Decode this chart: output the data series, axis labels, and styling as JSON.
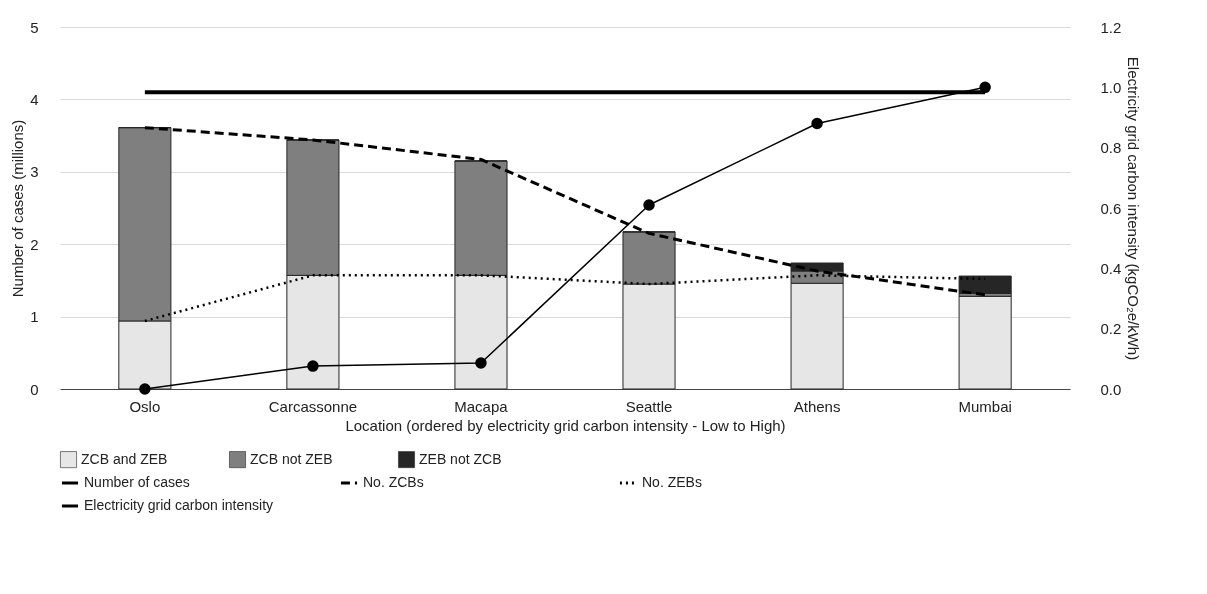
{
  "chart_data": {
    "type": "bar",
    "stacked": true,
    "xlabel": "Location (ordered by electricity grid carbon intensity - Low to High)",
    "ylabel": "Number of cases (millions)",
    "y2label": "Electricity grid carbon intensity (kgCO₂e/kWh)",
    "categories": [
      "Oslo",
      "Carcassonne",
      "Macapa",
      "Seattle",
      "Athens",
      "Mumbai"
    ],
    "series": [
      {
        "name": "ZCB and ZEB",
        "type": "bar",
        "color": "#e6e6e6",
        "values": [
          0.94,
          1.57,
          1.57,
          1.45,
          1.46,
          1.28
        ]
      },
      {
        "name": "ZCB not ZEB",
        "type": "bar",
        "color": "#7f7f7f",
        "values": [
          2.67,
          1.87,
          1.58,
          0.72,
          0.17,
          0.04
        ]
      },
      {
        "name": "ZEB not ZCB",
        "type": "bar",
        "color": "#262626",
        "values": [
          0,
          0,
          0,
          0,
          0.11,
          0.24
        ]
      },
      {
        "name": "Number of cases",
        "type": "line",
        "color": "#000000",
        "line_style": "solid",
        "values": [
          4.1,
          4.1,
          4.1,
          4.1,
          4.1,
          4.1
        ]
      },
      {
        "name": "No. ZCBs",
        "type": "line",
        "color": "#000000",
        "line_style": "dashed",
        "values": [
          3.61,
          3.44,
          3.17,
          2.15,
          1.63,
          1.3
        ]
      },
      {
        "name": "No. ZEBs",
        "type": "line",
        "color": "#000000",
        "line_style": "dotted",
        "values": [
          0.94,
          1.57,
          1.57,
          1.45,
          1.57,
          1.52
        ]
      },
      {
        "name": "Electricity grid carbon intensity",
        "type": "line",
        "axis": "y2",
        "color": "#000000",
        "line_style": "solid",
        "marker": "circle",
        "values": [
          0.0,
          0.076,
          0.086,
          0.61,
          0.88,
          1.0
        ]
      }
    ],
    "ylim": [
      0,
      5
    ],
    "yticks": [
      0,
      1,
      2,
      3,
      4,
      5
    ],
    "y2lim": [
      0,
      1.2
    ],
    "y2ticks": [
      {
        "value": 0,
        "label": "0.0"
      },
      {
        "value": 0.2,
        "label": "0.2"
      },
      {
        "value": 0.4,
        "label": "0.4"
      },
      {
        "value": 0.6,
        "label": "0.6"
      },
      {
        "value": 0.8,
        "label": "0.8"
      },
      {
        "value": 1,
        "label": "1.0"
      },
      {
        "value": 1.2,
        "label": "1.2"
      }
    ],
    "grid": "y",
    "legend": "bottom"
  }
}
